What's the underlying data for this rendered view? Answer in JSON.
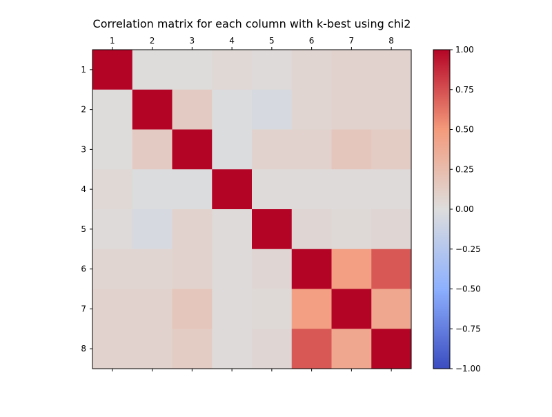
{
  "chart_data": {
    "type": "heatmap",
    "title": "Correlation matrix for each column with k-best using chi2",
    "row_labels": [
      "1",
      "2",
      "3",
      "4",
      "5",
      "6",
      "7",
      "8"
    ],
    "col_labels": [
      "1",
      "2",
      "3",
      "4",
      "5",
      "6",
      "7",
      "8"
    ],
    "values": [
      [
        1.0,
        0.01,
        0.01,
        0.04,
        0.02,
        0.06,
        0.08,
        0.08
      ],
      [
        0.01,
        1.0,
        0.14,
        -0.01,
        -0.04,
        0.06,
        0.08,
        0.08
      ],
      [
        0.01,
        0.14,
        1.0,
        -0.01,
        0.08,
        0.08,
        0.17,
        0.13
      ],
      [
        0.04,
        -0.01,
        -0.01,
        1.0,
        0.02,
        0.02,
        0.02,
        0.02
      ],
      [
        0.02,
        -0.04,
        0.08,
        0.02,
        1.0,
        0.05,
        0.03,
        0.05
      ],
      [
        0.06,
        0.06,
        0.08,
        0.02,
        0.05,
        1.0,
        0.46,
        0.72
      ],
      [
        0.08,
        0.08,
        0.17,
        0.02,
        0.03,
        0.46,
        1.0,
        0.4
      ],
      [
        0.08,
        0.08,
        0.13,
        0.02,
        0.05,
        0.72,
        0.4,
        1.0
      ]
    ],
    "colormap": "coolwarm",
    "vmin": -1.0,
    "vmax": 1.0,
    "colorbar_ticks": [
      "1.00",
      "0.75",
      "0.50",
      "0.25",
      "0.00",
      "−0.25",
      "−0.50",
      "−0.75",
      "−1.00"
    ],
    "colorbar_tick_values": [
      1.0,
      0.75,
      0.5,
      0.25,
      0.0,
      -0.25,
      -0.5,
      -0.75,
      -1.0
    ],
    "x_tick_position": "top",
    "grid": false
  }
}
